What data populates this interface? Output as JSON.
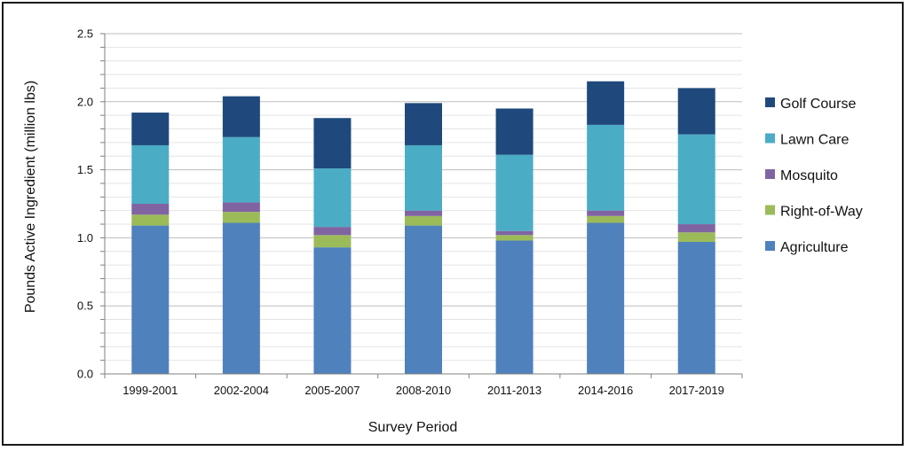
{
  "chart_data": {
    "type": "bar",
    "stacked": true,
    "title": "",
    "xlabel": "Survey Period",
    "ylabel": "Pounds Active Ingredient (million lbs)",
    "ylim": [
      0,
      2.5
    ],
    "yticks": [
      "0.0",
      "0.5",
      "1.0",
      "1.5",
      "2.0",
      "2.5"
    ],
    "grid": true,
    "legend_position": "right",
    "categories": [
      "1999-2001",
      "2002-2004",
      "2005-2007",
      "2008-2010",
      "2011-2013",
      "2014-2016",
      "2017-2019"
    ],
    "series": [
      {
        "name": "Agriculture",
        "color": "#4F81BD",
        "values": [
          1.09,
          1.11,
          0.93,
          1.09,
          0.98,
          1.11,
          0.97
        ]
      },
      {
        "name": "Right-of-Way",
        "color": "#9BBB59",
        "values": [
          0.08,
          0.08,
          0.09,
          0.07,
          0.04,
          0.05,
          0.07
        ]
      },
      {
        "name": "Mosquito",
        "color": "#8064A2",
        "values": [
          0.08,
          0.07,
          0.06,
          0.04,
          0.03,
          0.04,
          0.06
        ]
      },
      {
        "name": "Lawn Care",
        "color": "#4BACC6",
        "values": [
          0.43,
          0.48,
          0.43,
          0.48,
          0.56,
          0.63,
          0.66
        ]
      },
      {
        "name": "Golf Course",
        "color": "#1F497D",
        "values": [
          0.24,
          0.3,
          0.37,
          0.31,
          0.34,
          0.32,
          0.34
        ]
      }
    ]
  }
}
